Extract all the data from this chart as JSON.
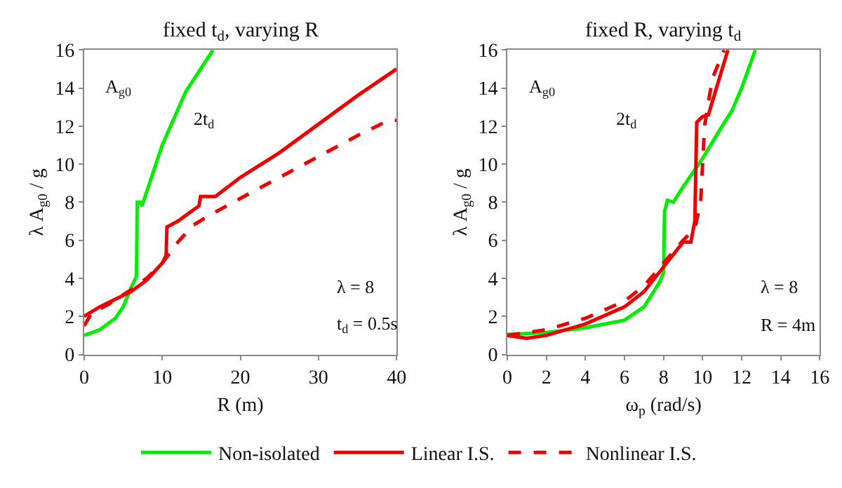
{
  "chart_data": [
    {
      "type": "line",
      "title": "fixed t$_{d}$, varying R",
      "xlabel": "R (m)",
      "ylabel": "λ A$_{g0}$ / g",
      "xlim": [
        0,
        40
      ],
      "xticks": [
        0,
        10,
        20,
        30,
        40
      ],
      "ylim": [
        0,
        16
      ],
      "yticks": [
        0,
        2,
        4,
        6,
        8,
        10,
        12,
        14,
        16
      ],
      "legend": "bottom",
      "annotations": [
        "λ = 8",
        "t$_{d}$ = 0.5s",
        "A$_{g0}$",
        "2t$_{d}$"
      ],
      "series": [
        {
          "name": "Non-isolated",
          "color": "#00ee00",
          "line_style": "solid",
          "x": [
            0,
            2,
            4,
            5,
            6,
            6.7,
            6.8,
            7.2,
            7.4,
            10,
            13,
            16.5
          ],
          "values": [
            1,
            1.3,
            1.9,
            2.5,
            3.5,
            4.1,
            8.0,
            8.0,
            7.8,
            11,
            13.8,
            16
          ]
        },
        {
          "name": "Linear I.S.",
          "color": "#ee0000",
          "line_style": "solid",
          "x": [
            0,
            2,
            4,
            6,
            8,
            10,
            10.5,
            10.6,
            12,
            14,
            14.7,
            14.9,
            16.8,
            20,
            25,
            30,
            35,
            40
          ],
          "values": [
            2,
            2.5,
            2.9,
            3.3,
            3.9,
            4.8,
            5.2,
            6.7,
            7.0,
            7.6,
            7.8,
            8.3,
            8.3,
            9.3,
            10.6,
            12.1,
            13.6,
            15
          ]
        },
        {
          "name": "Nonlinear I.S.",
          "color": "#ee0000",
          "line_style": "dashed",
          "x": [
            0,
            1,
            3,
            6,
            8,
            10,
            12,
            14,
            16,
            20,
            25,
            30,
            35,
            39,
            40
          ],
          "values": [
            1.5,
            2.2,
            2.6,
            3.4,
            4.0,
            4.8,
            5.9,
            6.8,
            7.3,
            8.2,
            9.3,
            10.4,
            11.5,
            12.3,
            12.3
          ]
        }
      ]
    },
    {
      "type": "line",
      "title": "fixed R, varying t$_{d}$",
      "xlabel": "ω$_{p}$ (rad/s)",
      "ylabel": "λ A$_{g0}$ / g",
      "xlim": [
        0,
        16
      ],
      "xticks": [
        0,
        2,
        4,
        6,
        8,
        10,
        12,
        14,
        16
      ],
      "ylim": [
        0,
        16
      ],
      "yticks": [
        0,
        2,
        4,
        6,
        8,
        10,
        12,
        14,
        16
      ],
      "annotations": [
        "λ = 8",
        "R = 4m",
        "A$_{g0}$",
        "2t$_{d}$"
      ],
      "series": [
        {
          "color": "#00ee00",
          "line_style": "solid",
          "x": [
            0,
            2,
            4,
            6,
            7,
            7.8,
            8,
            8.05,
            8.2,
            8.5,
            9,
            10,
            11,
            11.5,
            12,
            12.7
          ],
          "values": [
            1.05,
            1.15,
            1.4,
            1.8,
            2.5,
            3.8,
            4.3,
            7.5,
            8.1,
            8,
            8.8,
            10.3,
            12.0,
            12.8,
            14,
            16
          ]
        },
        {
          "color": "#ee0000",
          "line_style": "solid",
          "x": [
            0,
            1,
            2,
            4,
            6,
            7,
            8,
            9,
            9.4,
            9.6,
            9.7,
            10,
            10.3,
            11,
            11.3
          ],
          "values": [
            1,
            0.85,
            1.0,
            1.6,
            2.5,
            3.3,
            4.6,
            5.9,
            5.9,
            7,
            12.2,
            12.5,
            12.6,
            15,
            16
          ]
        },
        {
          "color": "#ee0000",
          "line_style": "dashed",
          "x": [
            0,
            2,
            4,
            6,
            7,
            8,
            9,
            9.6,
            9.9,
            10.1,
            10.5,
            11.1
          ],
          "values": [
            1,
            1.3,
            1.9,
            2.8,
            3.6,
            4.8,
            6,
            6.6,
            8,
            12,
            14.5,
            16
          ]
        }
      ]
    }
  ]
}
